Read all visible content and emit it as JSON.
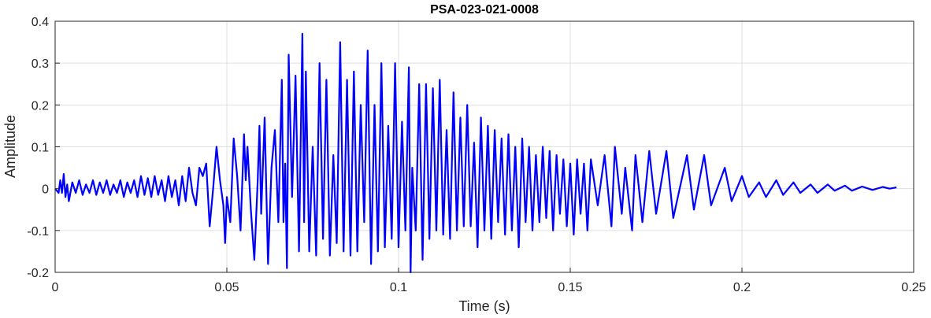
{
  "chart_data": {
    "type": "line",
    "title": "PSA-023-021-0008",
    "xlabel": "Time (s)",
    "ylabel": "Amplitude",
    "xlim": [
      0,
      0.25
    ],
    "ylim": [
      -0.2,
      0.4
    ],
    "grid": true,
    "xticks": [
      "0",
      "0.05",
      "0.1",
      "0.15",
      "0.2",
      "0.25"
    ],
    "yticks": [
      "-0.2",
      "-0.1",
      "0",
      "0.1",
      "0.2",
      "0.3",
      "0.4"
    ],
    "series": [
      {
        "name": "signal",
        "color": "#0000ff",
        "points": [
          [
            0,
            0
          ],
          [
            0.001,
            -0.01
          ],
          [
            0.0015,
            0.02
          ],
          [
            0.002,
            -0.01
          ],
          [
            0.0025,
            0.035
          ],
          [
            0.003,
            -0.02
          ],
          [
            0.0035,
            0.01
          ],
          [
            0.004,
            -0.03
          ],
          [
            0.005,
            0.015
          ],
          [
            0.006,
            -0.01
          ],
          [
            0.007,
            0.02
          ],
          [
            0.008,
            -0.015
          ],
          [
            0.009,
            0.01
          ],
          [
            0.01,
            -0.01
          ],
          [
            0.011,
            0.02
          ],
          [
            0.012,
            -0.015
          ],
          [
            0.013,
            0.015
          ],
          [
            0.014,
            -0.01
          ],
          [
            0.015,
            0.02
          ],
          [
            0.016,
            -0.015
          ],
          [
            0.017,
            0.01
          ],
          [
            0.018,
            -0.01
          ],
          [
            0.019,
            0.02
          ],
          [
            0.02,
            -0.02
          ],
          [
            0.021,
            0.015
          ],
          [
            0.022,
            -0.01
          ],
          [
            0.023,
            0.02
          ],
          [
            0.024,
            -0.02
          ],
          [
            0.025,
            0.03
          ],
          [
            0.026,
            -0.015
          ],
          [
            0.027,
            0.025
          ],
          [
            0.028,
            -0.02
          ],
          [
            0.029,
            0.03
          ],
          [
            0.03,
            -0.015
          ],
          [
            0.031,
            0.02
          ],
          [
            0.032,
            -0.03
          ],
          [
            0.033,
            0.03
          ],
          [
            0.034,
            -0.02
          ],
          [
            0.035,
            0.02
          ],
          [
            0.036,
            -0.04
          ],
          [
            0.037,
            0.03
          ],
          [
            0.038,
            -0.03
          ],
          [
            0.039,
            0.05
          ],
          [
            0.04,
            -0.01
          ],
          [
            0.041,
            -0.04
          ],
          [
            0.042,
            0.05
          ],
          [
            0.043,
            0.03
          ],
          [
            0.044,
            0.06
          ],
          [
            0.045,
            -0.09
          ],
          [
            0.046,
            0.0
          ],
          [
            0.047,
            0.1
          ],
          [
            0.048,
            0.02
          ],
          [
            0.049,
            -0.04
          ],
          [
            0.0495,
            -0.13
          ],
          [
            0.05,
            -0.02
          ],
          [
            0.051,
            -0.08
          ],
          [
            0.052,
            0.12
          ],
          [
            0.053,
            0.03
          ],
          [
            0.054,
            -0.1
          ],
          [
            0.055,
            0.13
          ],
          [
            0.0555,
            0.02
          ],
          [
            0.056,
            0.1
          ],
          [
            0.057,
            -0.05
          ],
          [
            0.058,
            -0.17
          ],
          [
            0.059,
            0.02
          ],
          [
            0.0595,
            0.15
          ],
          [
            0.06,
            -0.06
          ],
          [
            0.061,
            0.17
          ],
          [
            0.062,
            -0.18
          ],
          [
            0.063,
            0.05
          ],
          [
            0.064,
            0.14
          ],
          [
            0.065,
            -0.08
          ],
          [
            0.066,
            0.26
          ],
          [
            0.0665,
            -0.08
          ],
          [
            0.067,
            0.06
          ],
          [
            0.0675,
            -0.19
          ],
          [
            0.068,
            0.32
          ],
          [
            0.069,
            -0.02
          ],
          [
            0.07,
            0.27
          ],
          [
            0.071,
            -0.15
          ],
          [
            0.072,
            0.37
          ],
          [
            0.0725,
            -0.08
          ],
          [
            0.073,
            0.28
          ],
          [
            0.074,
            -0.15
          ],
          [
            0.075,
            0.1
          ],
          [
            0.076,
            -0.16
          ],
          [
            0.077,
            0.3
          ],
          [
            0.078,
            -0.12
          ],
          [
            0.079,
            0.26
          ],
          [
            0.08,
            -0.16
          ],
          [
            0.081,
            0.08
          ],
          [
            0.082,
            -0.13
          ],
          [
            0.083,
            0.35
          ],
          [
            0.084,
            -0.15
          ],
          [
            0.085,
            0.26
          ],
          [
            0.086,
            -0.16
          ],
          [
            0.087,
            0.28
          ],
          [
            0.088,
            -0.15
          ],
          [
            0.089,
            0.2
          ],
          [
            0.09,
            -0.08
          ],
          [
            0.091,
            0.33
          ],
          [
            0.092,
            -0.18
          ],
          [
            0.093,
            0.2
          ],
          [
            0.094,
            -0.15
          ],
          [
            0.095,
            0.3
          ],
          [
            0.096,
            -0.14
          ],
          [
            0.097,
            0.15
          ],
          [
            0.098,
            -0.12
          ],
          [
            0.099,
            0.3
          ],
          [
            0.1,
            -0.14
          ],
          [
            0.101,
            0.16
          ],
          [
            0.102,
            -0.1
          ],
          [
            0.103,
            0.29
          ],
          [
            0.1035,
            -0.2
          ],
          [
            0.104,
            0.05
          ],
          [
            0.105,
            -0.1
          ],
          [
            0.106,
            0.25
          ],
          [
            0.107,
            -0.17
          ],
          [
            0.108,
            0.25
          ],
          [
            0.109,
            -0.12
          ],
          [
            0.11,
            0.24
          ],
          [
            0.111,
            -0.1
          ],
          [
            0.112,
            0.26
          ],
          [
            0.113,
            -0.11
          ],
          [
            0.114,
            0.14
          ],
          [
            0.115,
            -0.12
          ],
          [
            0.116,
            0.23
          ],
          [
            0.117,
            -0.1
          ],
          [
            0.118,
            0.17
          ],
          [
            0.119,
            -0.09
          ],
          [
            0.12,
            0.2
          ],
          [
            0.121,
            -0.09
          ],
          [
            0.122,
            0.11
          ],
          [
            0.123,
            -0.14
          ],
          [
            0.124,
            0.17
          ],
          [
            0.125,
            -0.1
          ],
          [
            0.126,
            0.15
          ],
          [
            0.127,
            -0.12
          ],
          [
            0.128,
            0.14
          ],
          [
            0.129,
            -0.08
          ],
          [
            0.13,
            0.12
          ],
          [
            0.131,
            -0.11
          ],
          [
            0.132,
            0.13
          ],
          [
            0.133,
            -0.1
          ],
          [
            0.134,
            0.1
          ],
          [
            0.135,
            -0.14
          ],
          [
            0.136,
            0.12
          ],
          [
            0.137,
            -0.08
          ],
          [
            0.138,
            0.1
          ],
          [
            0.139,
            -0.1
          ],
          [
            0.14,
            0.08
          ],
          [
            0.141,
            -0.08
          ],
          [
            0.142,
            0.1
          ],
          [
            0.143,
            -0.07
          ],
          [
            0.144,
            0.09
          ],
          [
            0.145,
            -0.1
          ],
          [
            0.146,
            0.08
          ],
          [
            0.147,
            -0.06
          ],
          [
            0.148,
            0.07
          ],
          [
            0.149,
            -0.09
          ],
          [
            0.15,
            0.06
          ],
          [
            0.151,
            -0.11
          ],
          [
            0.152,
            0.07
          ],
          [
            0.153,
            -0.06
          ],
          [
            0.154,
            0.06
          ],
          [
            0.155,
            -0.1
          ],
          [
            0.156,
            0.07
          ],
          [
            0.158,
            -0.04
          ],
          [
            0.16,
            0.08
          ],
          [
            0.162,
            -0.09
          ],
          [
            0.163,
            0.1
          ],
          [
            0.165,
            -0.06
          ],
          [
            0.166,
            0.05
          ],
          [
            0.168,
            -0.1
          ],
          [
            0.169,
            0.08
          ],
          [
            0.171,
            -0.08
          ],
          [
            0.173,
            0.09
          ],
          [
            0.175,
            -0.06
          ],
          [
            0.178,
            0.09
          ],
          [
            0.18,
            -0.07
          ],
          [
            0.184,
            0.08
          ],
          [
            0.186,
            -0.05
          ],
          [
            0.189,
            0.08
          ],
          [
            0.191,
            -0.04
          ],
          [
            0.195,
            0.05
          ],
          [
            0.197,
            -0.03
          ],
          [
            0.2,
            0.03
          ],
          [
            0.202,
            -0.02
          ],
          [
            0.205,
            0.015
          ],
          [
            0.207,
            -0.02
          ],
          [
            0.21,
            0.02
          ],
          [
            0.212,
            -0.015
          ],
          [
            0.215,
            0.015
          ],
          [
            0.217,
            -0.01
          ],
          [
            0.22,
            0.01
          ],
          [
            0.222,
            -0.01
          ],
          [
            0.225,
            0.01
          ],
          [
            0.227,
            -0.005
          ],
          [
            0.23,
            0.007
          ],
          [
            0.232,
            -0.005
          ],
          [
            0.235,
            0.005
          ],
          [
            0.238,
            -0.003
          ],
          [
            0.241,
            0.004
          ],
          [
            0.243,
            0.0
          ],
          [
            0.245,
            0.003
          ]
        ]
      }
    ]
  }
}
